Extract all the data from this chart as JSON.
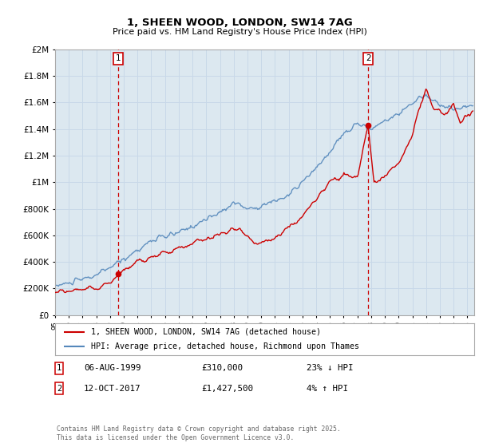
{
  "title": "1, SHEEN WOOD, LONDON, SW14 7AG",
  "subtitle": "Price paid vs. HM Land Registry's House Price Index (HPI)",
  "legend_entry1": "1, SHEEN WOOD, LONDON, SW14 7AG (detached house)",
  "legend_entry2": "HPI: Average price, detached house, Richmond upon Thames",
  "annotation1_date": "06-AUG-1999",
  "annotation1_price": "£310,000",
  "annotation1_hpi": "23% ↓ HPI",
  "annotation2_date": "12-OCT-2017",
  "annotation2_price": "£1,427,500",
  "annotation2_hpi": "4% ↑ HPI",
  "footnote": "Contains HM Land Registry data © Crown copyright and database right 2025.\nThis data is licensed under the Open Government Licence v3.0.",
  "red_color": "#cc0000",
  "blue_color": "#5588bb",
  "vline_color": "#cc0000",
  "grid_color": "#c8d8e8",
  "bg_color": "#dce8f0",
  "ylim": [
    0,
    2000000
  ],
  "xlim_start": 1995.0,
  "xlim_end": 2025.5,
  "vline1_x": 1999.59,
  "vline2_x": 2017.78,
  "sale1_x": 1999.59,
  "sale1_y": 310000,
  "sale2_x": 2017.78,
  "sale2_y": 1427500
}
